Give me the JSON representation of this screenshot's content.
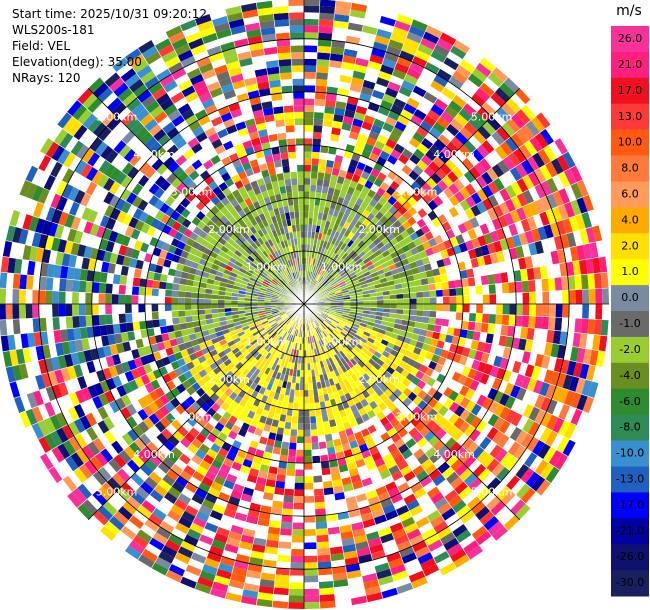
{
  "info": {
    "start_time": "Start time: 2025/10/31 09:20:12",
    "station": "WLS200s-181",
    "field": "Field: VEL",
    "elevation": "Elevation(deg): 35.00",
    "nrays": "NRays: 120"
  },
  "chart_data": {
    "type": "heatmap",
    "projection": "polar-ppi",
    "field": "VEL",
    "unit": "m/s",
    "nrays": 120,
    "range_rings_km": [
      1.0,
      2.0,
      3.0,
      4.0,
      5.0
    ],
    "ring_labels": [
      "1.00km",
      "2.00km",
      "3.00km",
      "4.00km",
      "5.00km"
    ],
    "colorbar": {
      "unit_label": "m/s",
      "ticks": [
        "26.0",
        "21.0",
        "17.0",
        "13.0",
        "10.0",
        "8.0",
        "6.0",
        "4.0",
        "2.0",
        "1.0",
        "0.0",
        "-1.0",
        "-2.0",
        "-4.0",
        "-6.0",
        "-8.0",
        "-10.0",
        "-13.0",
        "-17.0",
        "-21.0",
        "-26.0",
        "-30.0"
      ],
      "colors": [
        "#f7319a",
        "#ff1f7f",
        "#f01020",
        "#ff3838",
        "#ff5a10",
        "#ff7a3a",
        "#ff9a5a",
        "#ffaa00",
        "#ffe000",
        "#ffff00",
        "#7a8aa0",
        "#6a6a6a",
        "#9acd32",
        "#6b8e23",
        "#2e8b30",
        "#2e8b57",
        "#3a8fd0",
        "#2060c0",
        "#0000ff",
        "#0000a0",
        "#101070",
        "#182060"
      ]
    }
  }
}
